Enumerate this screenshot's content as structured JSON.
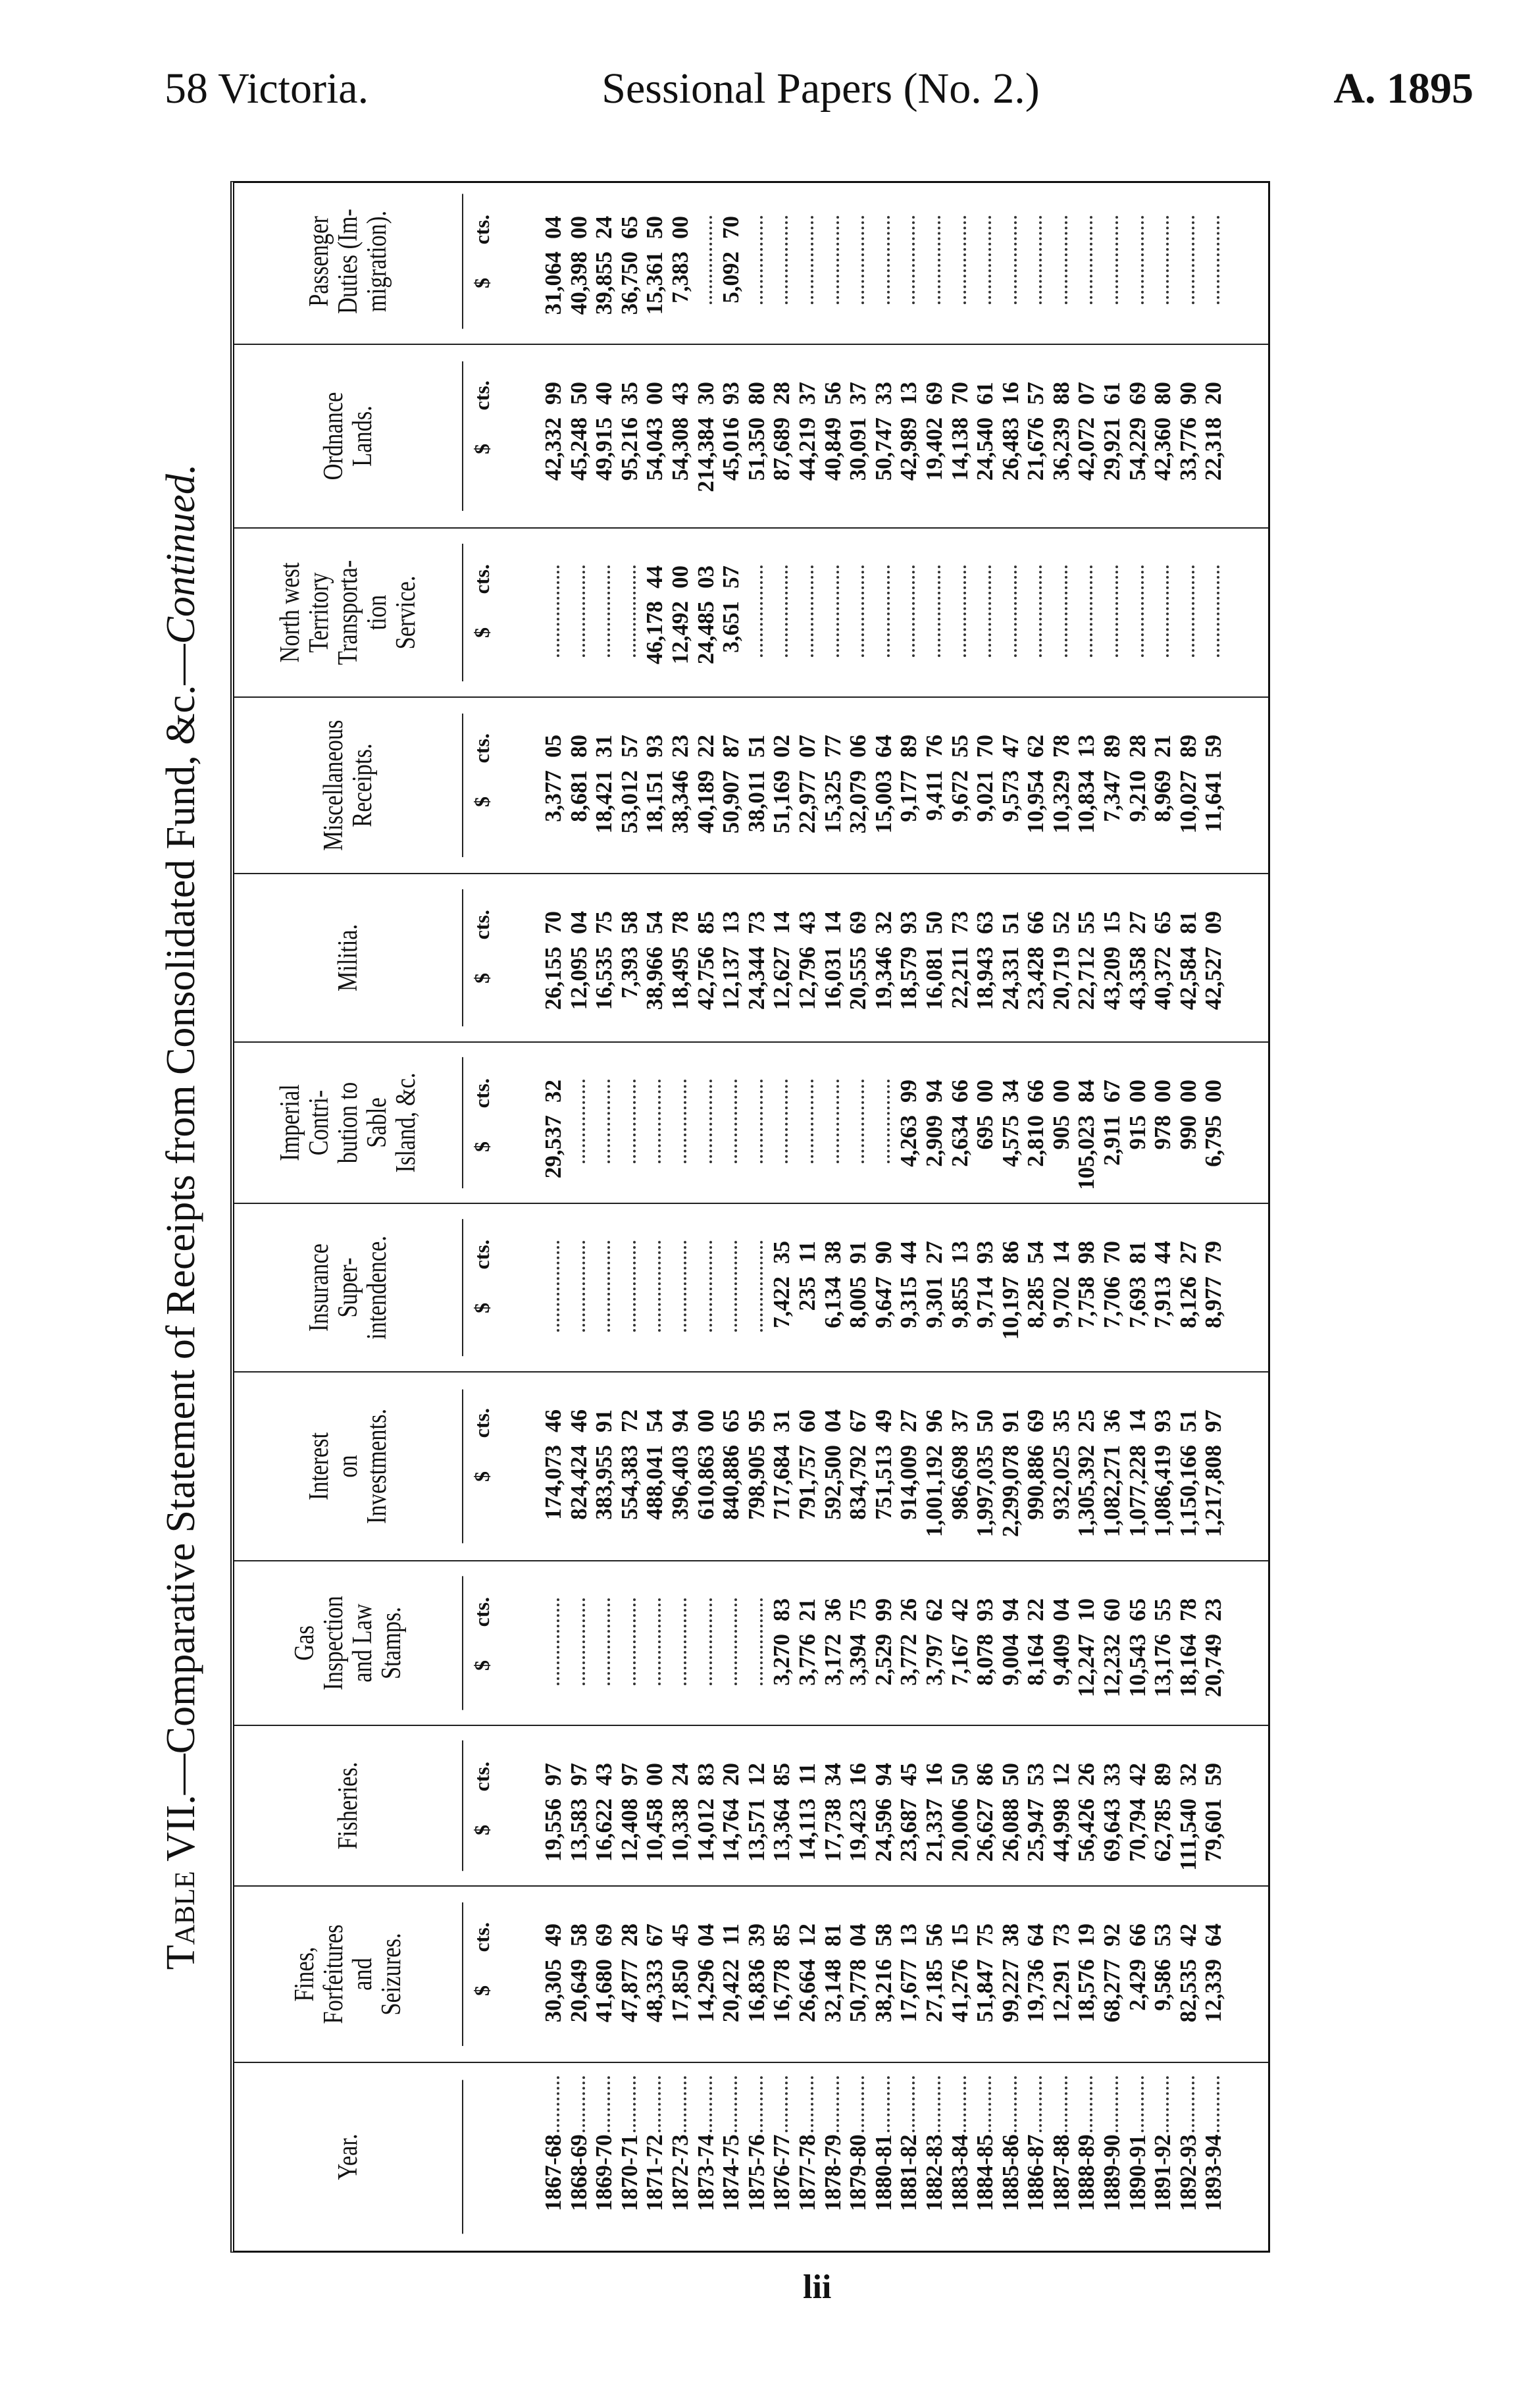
{
  "running_head": {
    "left": "58 Victoria.",
    "center": "Sessional Papers (No. 2.)",
    "right": "A. 1895"
  },
  "title": {
    "prefix": "Table VII.",
    "main": "—Comparative Statement of Receipts from Consolidated Fund, &c.—",
    "suffix": "Continued."
  },
  "folio": "lii",
  "units": {
    "dollars": "$",
    "cents": "cts."
  },
  "columns": [
    "Year.",
    "Fines,\nForfeitures\nand\nSeizures.",
    "Fisheries.",
    "Gas\nInspection\nand Law\nStamps.",
    "Interest\non\nInvestments.",
    "Insurance\nSuper-\nintendence.",
    "Imperial\nContri-\nbution to\nSable\nIsland, &c.",
    "Militia.",
    "Miscellaneous\nReceipts.",
    "North west\nTerritory\nTransporta-\ntion\nService.",
    "Ordnance\nLands.",
    "Passenger\nDuties (Im-\nmigration)."
  ],
  "rows": [
    {
      "year": "1867-68",
      "values": [
        [
          "30,305",
          "49"
        ],
        [
          "19,556",
          "97"
        ],
        null,
        [
          "174,073",
          "46"
        ],
        null,
        [
          "29,537",
          "32"
        ],
        [
          "26,155",
          "70"
        ],
        [
          "3,377",
          "05"
        ],
        null,
        [
          "42,332",
          "99"
        ],
        [
          "31,064",
          "04"
        ]
      ]
    },
    {
      "year": "1868-69",
      "values": [
        [
          "20,649",
          "58"
        ],
        [
          "13,583",
          "97"
        ],
        null,
        [
          "824,424",
          "46"
        ],
        null,
        null,
        [
          "12,095",
          "04"
        ],
        [
          "8,681",
          "80"
        ],
        null,
        [
          "45,248",
          "50"
        ],
        [
          "40,398",
          "00"
        ]
      ]
    },
    {
      "year": "1869-70",
      "values": [
        [
          "41,680",
          "69"
        ],
        [
          "16,622",
          "43"
        ],
        null,
        [
          "383,955",
          "91"
        ],
        null,
        null,
        [
          "16,535",
          "75"
        ],
        [
          "18,421",
          "31"
        ],
        null,
        [
          "49,915",
          "40"
        ],
        [
          "39,855",
          "24"
        ]
      ]
    },
    {
      "year": "1870-71",
      "values": [
        [
          "47,877",
          "28"
        ],
        [
          "12,408",
          "97"
        ],
        null,
        [
          "554,383",
          "72"
        ],
        null,
        null,
        [
          "7,393",
          "58"
        ],
        [
          "53,012",
          "57"
        ],
        null,
        [
          "95,216",
          "35"
        ],
        [
          "36,750",
          "65"
        ]
      ]
    },
    {
      "year": "1871-72",
      "values": [
        [
          "48,333",
          "67"
        ],
        [
          "10,458",
          "00"
        ],
        null,
        [
          "488,041",
          "54"
        ],
        null,
        null,
        [
          "38,966",
          "54"
        ],
        [
          "18,151",
          "93"
        ],
        [
          "46,178",
          "44"
        ],
        [
          "54,043",
          "00"
        ],
        [
          "15,361",
          "50"
        ]
      ]
    },
    {
      "year": "1872-73",
      "values": [
        [
          "17,850",
          "45"
        ],
        [
          "10,338",
          "24"
        ],
        null,
        [
          "396,403",
          "94"
        ],
        null,
        null,
        [
          "18,495",
          "78"
        ],
        [
          "38,346",
          "23"
        ],
        [
          "12,492",
          "00"
        ],
        [
          "54,308",
          "43"
        ],
        [
          "7,383",
          "00"
        ]
      ]
    },
    {
      "year": "1873-74",
      "values": [
        [
          "14,296",
          "04"
        ],
        [
          "14,012",
          "83"
        ],
        null,
        [
          "610,863",
          "00"
        ],
        null,
        null,
        [
          "42,756",
          "85"
        ],
        [
          "40,189",
          "22"
        ],
        [
          "24,485",
          "03"
        ],
        [
          "214,384",
          "30"
        ],
        null
      ]
    },
    {
      "year": "1874-75",
      "values": [
        [
          "20,422",
          "11"
        ],
        [
          "14,764",
          "20"
        ],
        null,
        [
          "840,886",
          "65"
        ],
        null,
        null,
        [
          "12,137",
          "13"
        ],
        [
          "50,907",
          "87"
        ],
        [
          "3,651",
          "57"
        ],
        [
          "45,016",
          "93"
        ],
        [
          "5,092",
          "70"
        ]
      ]
    },
    {
      "year": "1875-76",
      "values": [
        [
          "16,836",
          "39"
        ],
        [
          "13,571",
          "12"
        ],
        null,
        [
          "798,905",
          "95"
        ],
        null,
        null,
        [
          "24,344",
          "73"
        ],
        [
          "38,011",
          "51"
        ],
        null,
        [
          "51,350",
          "80"
        ],
        null
      ]
    },
    {
      "year": "1876-77",
      "values": [
        [
          "16,778",
          "85"
        ],
        [
          "13,364",
          "85"
        ],
        [
          "3,270",
          "83"
        ],
        [
          "717,684",
          "31"
        ],
        [
          "7,422",
          "35"
        ],
        null,
        [
          "12,627",
          "14"
        ],
        [
          "51,169",
          "02"
        ],
        null,
        [
          "87,689",
          "28"
        ],
        null
      ]
    },
    {
      "year": "1877-78",
      "values": [
        [
          "26,664",
          "12"
        ],
        [
          "14,113",
          "11"
        ],
        [
          "3,776",
          "21"
        ],
        [
          "791,757",
          "60"
        ],
        [
          "235",
          "11"
        ],
        null,
        [
          "12,796",
          "43"
        ],
        [
          "22,977",
          "07"
        ],
        null,
        [
          "44,219",
          "37"
        ],
        null
      ]
    },
    {
      "year": "1878-79",
      "values": [
        [
          "32,148",
          "81"
        ],
        [
          "17,738",
          "34"
        ],
        [
          "3,172",
          "36"
        ],
        [
          "592,500",
          "04"
        ],
        [
          "6,134",
          "38"
        ],
        null,
        [
          "16,031",
          "14"
        ],
        [
          "15,325",
          "77"
        ],
        null,
        [
          "40,849",
          "56"
        ],
        null
      ]
    },
    {
      "year": "1879-80",
      "values": [
        [
          "50,778",
          "04"
        ],
        [
          "19,423",
          "16"
        ],
        [
          "3,394",
          "75"
        ],
        [
          "834,792",
          "67"
        ],
        [
          "8,005",
          "91"
        ],
        null,
        [
          "20,555",
          "69"
        ],
        [
          "32,079",
          "06"
        ],
        null,
        [
          "30,091",
          "37"
        ],
        null
      ]
    },
    {
      "year": "1880-81",
      "values": [
        [
          "38,216",
          "58"
        ],
        [
          "24,596",
          "94"
        ],
        [
          "2,529",
          "99"
        ],
        [
          "751,513",
          "49"
        ],
        [
          "9,647",
          "90"
        ],
        null,
        [
          "19,346",
          "32"
        ],
        [
          "15,003",
          "64"
        ],
        null,
        [
          "50,747",
          "33"
        ],
        null
      ]
    },
    {
      "year": "1881-82",
      "values": [
        [
          "17,677",
          "13"
        ],
        [
          "23,687",
          "45"
        ],
        [
          "3,772",
          "26"
        ],
        [
          "914,009",
          "27"
        ],
        [
          "9,315",
          "44"
        ],
        [
          "4,263",
          "99"
        ],
        [
          "18,579",
          "93"
        ],
        [
          "9,177",
          "89"
        ],
        null,
        [
          "42,989",
          "13"
        ],
        null
      ]
    },
    {
      "year": "1882-83",
      "values": [
        [
          "27,185",
          "56"
        ],
        [
          "21,337",
          "16"
        ],
        [
          "3,797",
          "62"
        ],
        [
          "1,001,192",
          "96"
        ],
        [
          "9,301",
          "27"
        ],
        [
          "2,909",
          "94"
        ],
        [
          "16,081",
          "50"
        ],
        [
          "9,411",
          "76"
        ],
        null,
        [
          "19,402",
          "69"
        ],
        null
      ]
    },
    {
      "year": "1883-84",
      "values": [
        [
          "41,276",
          "15"
        ],
        [
          "20,006",
          "50"
        ],
        [
          "7,167",
          "42"
        ],
        [
          "986,698",
          "37"
        ],
        [
          "9,855",
          "13"
        ],
        [
          "2,634",
          "66"
        ],
        [
          "22,211",
          "73"
        ],
        [
          "9,672",
          "55"
        ],
        null,
        [
          "14,138",
          "70"
        ],
        null
      ]
    },
    {
      "year": "1884-85",
      "values": [
        [
          "51,847",
          "75"
        ],
        [
          "26,627",
          "86"
        ],
        [
          "8,078",
          "93"
        ],
        [
          "1,997,035",
          "50"
        ],
        [
          "9,714",
          "93"
        ],
        [
          "695",
          "00"
        ],
        [
          "18,943",
          "63"
        ],
        [
          "9,021",
          "70"
        ],
        null,
        [
          "24,540",
          "61"
        ],
        null
      ]
    },
    {
      "year": "1885-86",
      "values": [
        [
          "99,227",
          "38"
        ],
        [
          "26,088",
          "50"
        ],
        [
          "9,004",
          "94"
        ],
        [
          "2,299,078",
          "91"
        ],
        [
          "10,197",
          "86"
        ],
        [
          "4,575",
          "34"
        ],
        [
          "24,331",
          "51"
        ],
        [
          "9,573",
          "47"
        ],
        null,
        [
          "26,483",
          "16"
        ],
        null
      ]
    },
    {
      "year": "1886-87",
      "values": [
        [
          "19,736",
          "64"
        ],
        [
          "25,947",
          "53"
        ],
        [
          "8,164",
          "22"
        ],
        [
          "990,886",
          "69"
        ],
        [
          "8,285",
          "54"
        ],
        [
          "2,810",
          "66"
        ],
        [
          "23,428",
          "66"
        ],
        [
          "10,954",
          "62"
        ],
        null,
        [
          "21,676",
          "57"
        ],
        null
      ]
    },
    {
      "year": "1887-88",
      "values": [
        [
          "12,291",
          "73"
        ],
        [
          "44,998",
          "12"
        ],
        [
          "9,409",
          "04"
        ],
        [
          "932,025",
          "35"
        ],
        [
          "9,702",
          "14"
        ],
        [
          "905",
          "00"
        ],
        [
          "20,719",
          "52"
        ],
        [
          "10,329",
          "78"
        ],
        null,
        [
          "36,239",
          "88"
        ],
        null
      ]
    },
    {
      "year": "1888-89",
      "values": [
        [
          "18,576",
          "19"
        ],
        [
          "56,426",
          "26"
        ],
        [
          "12,247",
          "10"
        ],
        [
          "1,305,392",
          "25"
        ],
        [
          "7,758",
          "98"
        ],
        [
          "105,023",
          "84"
        ],
        [
          "22,712",
          "55"
        ],
        [
          "10,834",
          "13"
        ],
        null,
        [
          "42,072",
          "07"
        ],
        null
      ]
    },
    {
      "year": "1889-90",
      "values": [
        [
          "68,277",
          "92"
        ],
        [
          "69,643",
          "33"
        ],
        [
          "12,232",
          "60"
        ],
        [
          "1,082,271",
          "36"
        ],
        [
          "7,706",
          "70"
        ],
        [
          "2,911",
          "67"
        ],
        [
          "43,209",
          "15"
        ],
        [
          "7,347",
          "89"
        ],
        null,
        [
          "29,921",
          "61"
        ],
        null
      ]
    },
    {
      "year": "1890-91",
      "values": [
        [
          "2,429",
          "66"
        ],
        [
          "70,794",
          "42"
        ],
        [
          "10,543",
          "65"
        ],
        [
          "1,077,228",
          "14"
        ],
        [
          "7,693",
          "81"
        ],
        [
          "915",
          "00"
        ],
        [
          "43,358",
          "27"
        ],
        [
          "9,210",
          "28"
        ],
        null,
        [
          "54,229",
          "69"
        ],
        null
      ]
    },
    {
      "year": "1891-92",
      "values": [
        [
          "9,586",
          "53"
        ],
        [
          "62,785",
          "89"
        ],
        [
          "13,176",
          "55"
        ],
        [
          "1,086,419",
          "93"
        ],
        [
          "7,913",
          "44"
        ],
        [
          "978",
          "00"
        ],
        [
          "40,372",
          "65"
        ],
        [
          "8,969",
          "21"
        ],
        null,
        [
          "42,360",
          "80"
        ],
        null
      ]
    },
    {
      "year": "1892-93",
      "values": [
        [
          "82,535",
          "42"
        ],
        [
          "111,540",
          "32"
        ],
        [
          "18,164",
          "78"
        ],
        [
          "1,150,166",
          "51"
        ],
        [
          "8,126",
          "27"
        ],
        [
          "990",
          "00"
        ],
        [
          "42,584",
          "81"
        ],
        [
          "10,027",
          "89"
        ],
        null,
        [
          "33,776",
          "90"
        ],
        null
      ]
    },
    {
      "year": "1893-94",
      "values": [
        [
          "12,339",
          "64"
        ],
        [
          "79,601",
          "59"
        ],
        [
          "20,749",
          "23"
        ],
        [
          "1,217,808",
          "97"
        ],
        [
          "8,977",
          "79"
        ],
        [
          "6,795",
          "00"
        ],
        [
          "42,527",
          "09"
        ],
        [
          "11,641",
          "59"
        ],
        null,
        [
          "22,318",
          "20"
        ],
        null
      ]
    }
  ]
}
